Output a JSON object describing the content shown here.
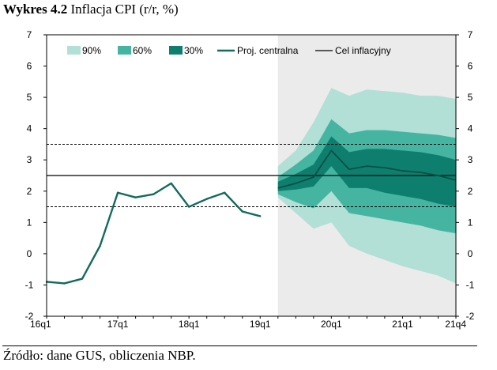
{
  "title": {
    "bold": "Wykres 4.2",
    "rest": " Inflacja CPI (r/r, %)"
  },
  "source": "Źródło: dane GUS, obliczenia NBP.",
  "colors": {
    "band90": "#b2dfd6",
    "band60": "#45b4a1",
    "band30": "#0e7f6e",
    "line": "#136b5b",
    "projection_bg": "#ebebeb",
    "target": "#000000"
  },
  "chart_data": {
    "type": "area",
    "title": "Inflacja CPI (r/r, %)",
    "ylim": [
      -2,
      7
    ],
    "yticks": [
      "-2",
      "-1",
      "0",
      "1",
      "2",
      "3",
      "4",
      "5",
      "6",
      "7"
    ],
    "xlim": [
      0,
      23
    ],
    "xticks": [
      {
        "q": 0,
        "label": "16q1"
      },
      {
        "q": 4,
        "label": "17q1"
      },
      {
        "q": 8,
        "label": "18q1"
      },
      {
        "q": 12,
        "label": "19q1"
      },
      {
        "q": 16,
        "label": "20q1"
      },
      {
        "q": 20,
        "label": "21q1"
      },
      {
        "q": 23,
        "label": "21q4"
      }
    ],
    "projection_start_q": 13,
    "target": 2.5,
    "tolerance_band": [
      1.5,
      3.5
    ],
    "history": {
      "q": [
        0,
        1,
        2,
        3,
        4,
        5,
        6,
        7,
        8,
        9,
        10,
        11,
        12
      ],
      "values": [
        -0.9,
        -0.95,
        -0.8,
        0.25,
        1.95,
        1.8,
        1.9,
        2.25,
        1.5,
        1.75,
        1.95,
        1.35,
        1.2
      ]
    },
    "fan": {
      "q": [
        13,
        14,
        15,
        16,
        17,
        18,
        19,
        20,
        21,
        22,
        23
      ],
      "central": [
        2.1,
        2.25,
        2.45,
        3.3,
        2.7,
        2.8,
        2.75,
        2.65,
        2.6,
        2.5,
        2.35
      ],
      "lower90": [
        1.8,
        1.3,
        0.8,
        1.0,
        0.25,
        0.0,
        -0.2,
        -0.4,
        -0.55,
        -0.7,
        -0.95
      ],
      "upper90": [
        2.8,
        3.3,
        4.2,
        5.3,
        5.05,
        5.25,
        5.2,
        5.15,
        5.05,
        5.05,
        4.95
      ],
      "lower60": [
        1.9,
        1.65,
        1.45,
        2.0,
        1.3,
        1.2,
        1.1,
        1.0,
        0.9,
        0.75,
        0.65
      ],
      "upper60": [
        2.45,
        2.85,
        3.3,
        4.3,
        3.85,
        3.95,
        3.95,
        3.9,
        3.85,
        3.8,
        3.7
      ],
      "lower30": [
        2.0,
        2.05,
        2.15,
        2.8,
        2.1,
        2.1,
        1.95,
        1.85,
        1.75,
        1.6,
        1.5
      ],
      "upper30": [
        2.3,
        2.55,
        2.85,
        3.75,
        3.25,
        3.35,
        3.35,
        3.3,
        3.25,
        3.15,
        3.0
      ]
    },
    "legend": [
      "90%",
      "60%",
      "30%",
      "Proj. centralna",
      "Cel inflacyjny"
    ]
  }
}
